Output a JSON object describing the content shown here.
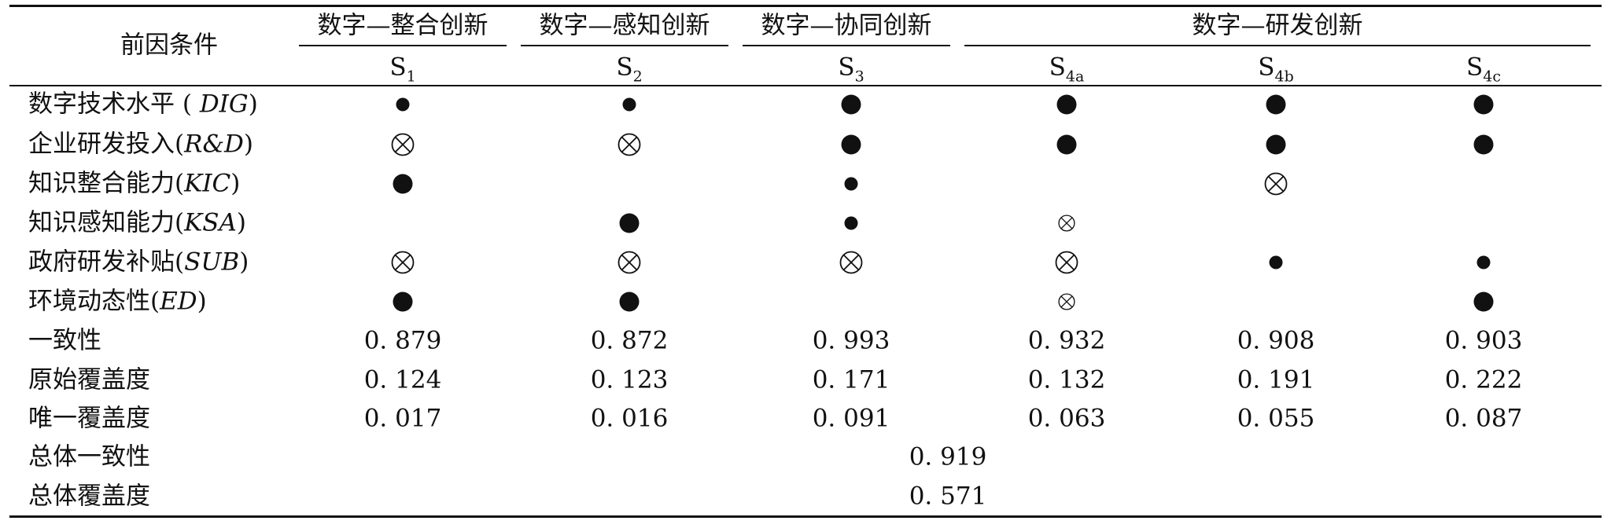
{
  "table": {
    "corner_header": "前因条件",
    "groups": [
      "数字—整合创新",
      "数字—感知创新",
      "数字—协同创新",
      "数字—研发创新"
    ],
    "solutions": [
      {
        "base": "S",
        "sub": "1"
      },
      {
        "base": "S",
        "sub": "2"
      },
      {
        "base": "S",
        "sub": "3"
      },
      {
        "base": "S",
        "sub": "4a"
      },
      {
        "base": "S",
        "sub": "4b"
      },
      {
        "base": "S",
        "sub": "4c"
      }
    ],
    "conditions": [
      {
        "label": "数字技术水平",
        "code": "DIG"
      },
      {
        "label": "企业研发投入",
        "code": "R&D"
      },
      {
        "label": "知识整合能力",
        "code": "KIC"
      },
      {
        "label": "知识感知能力",
        "code": "KSA"
      },
      {
        "label": "政府研发补贴",
        "code": "SUB"
      },
      {
        "label": "环境动态性",
        "code": "ED"
      }
    ],
    "symbols": [
      [
        "core_present_small",
        "core_present_small",
        "core_present_large",
        "core_present_large",
        "core_present_large",
        "core_present_large"
      ],
      [
        "absent_large",
        "absent_large",
        "core_present_large",
        "core_present_large",
        "core_present_large",
        "core_present_large"
      ],
      [
        "core_present_large",
        "",
        "core_present_small",
        "",
        "absent_large",
        ""
      ],
      [
        "",
        "core_present_large",
        "core_present_small",
        "absent_small",
        "",
        ""
      ],
      [
        "absent_large",
        "absent_large",
        "absent_large",
        "absent_large",
        "core_present_small",
        "core_present_small"
      ],
      [
        "core_present_large",
        "core_present_large",
        "",
        "absent_small",
        "",
        "core_present_large"
      ]
    ],
    "metrics": [
      {
        "label": "一致性",
        "values": [
          "0. 879",
          "0. 872",
          "0. 993",
          "0. 932",
          "0. 908",
          "0. 903"
        ]
      },
      {
        "label": "原始覆盖度",
        "values": [
          "0. 124",
          "0. 123",
          "0. 171",
          "0. 132",
          "0. 191",
          "0. 222"
        ]
      },
      {
        "label": "唯一覆盖度",
        "values": [
          "0. 017",
          "0. 016",
          "0. 091",
          "0. 063",
          "0. 055",
          "0. 087"
        ]
      }
    ],
    "overall": [
      {
        "label": "总体一致性",
        "value": "0. 919"
      },
      {
        "label": "总体覆盖度",
        "value": "0. 571"
      }
    ]
  }
}
